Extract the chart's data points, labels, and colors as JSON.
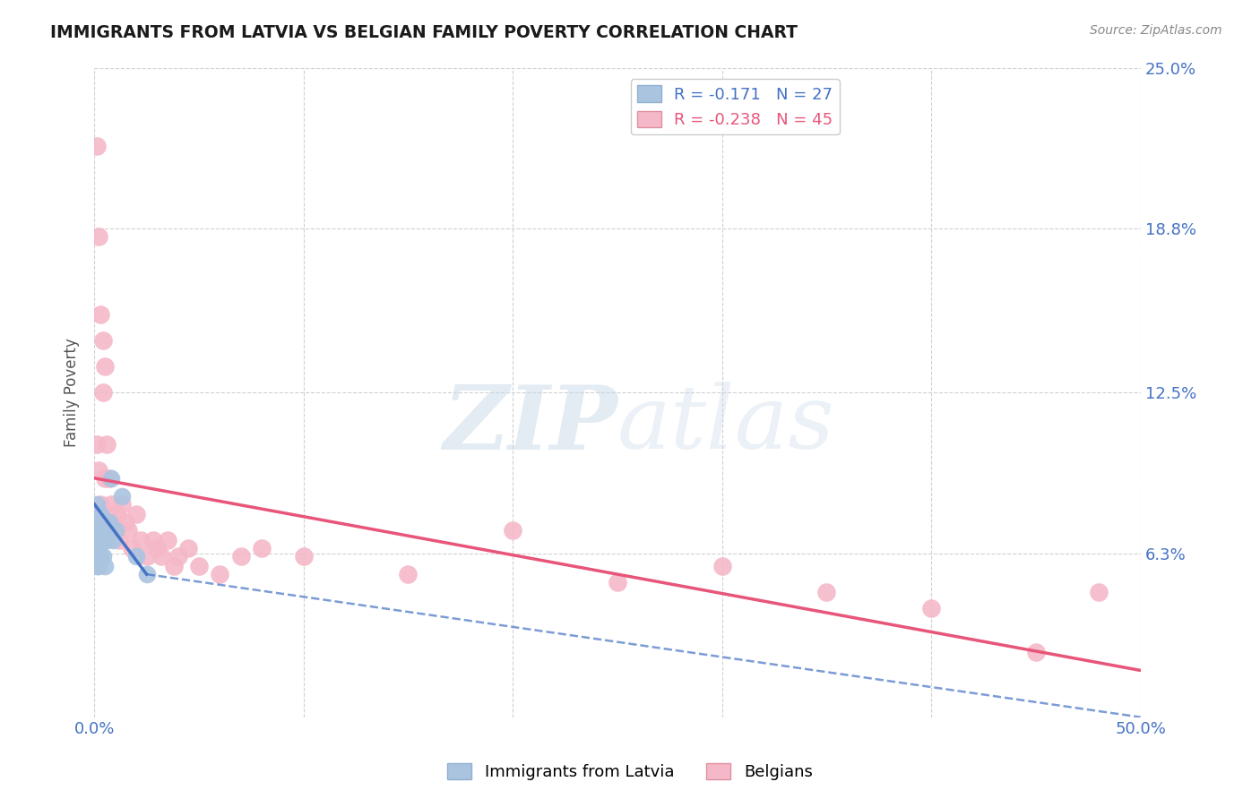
{
  "title": "IMMIGRANTS FROM LATVIA VS BELGIAN FAMILY POVERTY CORRELATION CHART",
  "source_text": "Source: ZipAtlas.com",
  "ylabel": "Family Poverty",
  "legend_label_blue": "Immigrants from Latvia",
  "legend_label_pink": "Belgians",
  "R_blue": -0.171,
  "N_blue": 27,
  "R_pink": -0.238,
  "N_pink": 45,
  "xlim": [
    0.0,
    0.5
  ],
  "ylim": [
    0.0,
    0.25
  ],
  "ytick_positions": [
    0.0,
    0.063,
    0.125,
    0.188,
    0.25
  ],
  "ytick_labels": [
    "",
    "6.3%",
    "12.5%",
    "18.8%",
    "25.0%"
  ],
  "color_blue": "#aac4e0",
  "color_blue_line": "#4472C4",
  "color_pink": "#f5b8c8",
  "color_pink_line": "#e8557a",
  "background_color": "#ffffff",
  "watermark_color": "#c8d8e8",
  "blue_points_x": [
    0.001,
    0.001,
    0.001,
    0.001,
    0.001,
    0.002,
    0.002,
    0.002,
    0.002,
    0.002,
    0.003,
    0.003,
    0.003,
    0.003,
    0.004,
    0.004,
    0.004,
    0.005,
    0.005,
    0.006,
    0.007,
    0.008,
    0.009,
    0.01,
    0.013,
    0.02,
    0.025
  ],
  "blue_points_y": [
    0.082,
    0.072,
    0.068,
    0.062,
    0.058,
    0.075,
    0.072,
    0.068,
    0.062,
    0.058,
    0.078,
    0.072,
    0.068,
    0.062,
    0.075,
    0.068,
    0.062,
    0.072,
    0.058,
    0.068,
    0.075,
    0.092,
    0.068,
    0.072,
    0.085,
    0.062,
    0.055
  ],
  "pink_points_x": [
    0.001,
    0.001,
    0.002,
    0.002,
    0.003,
    0.003,
    0.004,
    0.004,
    0.005,
    0.005,
    0.006,
    0.007,
    0.007,
    0.008,
    0.009,
    0.01,
    0.011,
    0.012,
    0.013,
    0.015,
    0.016,
    0.018,
    0.02,
    0.022,
    0.025,
    0.028,
    0.03,
    0.032,
    0.035,
    0.038,
    0.04,
    0.045,
    0.05,
    0.06,
    0.07,
    0.08,
    0.1,
    0.15,
    0.2,
    0.25,
    0.3,
    0.35,
    0.4,
    0.45,
    0.48
  ],
  "pink_points_y": [
    0.22,
    0.105,
    0.185,
    0.095,
    0.155,
    0.082,
    0.145,
    0.125,
    0.135,
    0.092,
    0.105,
    0.092,
    0.078,
    0.082,
    0.075,
    0.072,
    0.078,
    0.068,
    0.082,
    0.075,
    0.072,
    0.065,
    0.078,
    0.068,
    0.062,
    0.068,
    0.065,
    0.062,
    0.068,
    0.058,
    0.062,
    0.065,
    0.058,
    0.055,
    0.062,
    0.065,
    0.062,
    0.055,
    0.072,
    0.052,
    0.058,
    0.048,
    0.042,
    0.025,
    0.048
  ],
  "blue_line_x0": 0.0,
  "blue_line_y0": 0.082,
  "blue_line_x1": 0.025,
  "blue_line_y1": 0.055,
  "blue_line_dash_x0": 0.025,
  "blue_line_dash_y0": 0.055,
  "blue_line_dash_x1": 0.5,
  "blue_line_dash_y1": 0.0,
  "pink_line_x0": 0.0,
  "pink_line_y0": 0.092,
  "pink_line_x1": 0.5,
  "pink_line_y1": 0.018
}
